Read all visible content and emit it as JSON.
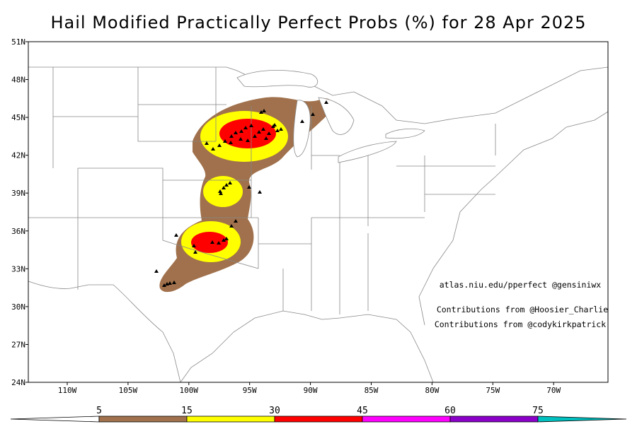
{
  "title": "Hail Modified Practically Perfect Probs (%) for 28 Apr 2025",
  "lat_labels": [
    "51N",
    "48N",
    "45N",
    "42N",
    "39N",
    "36N",
    "33N",
    "30N",
    "27N",
    "24N"
  ],
  "lon_labels": [
    "110W",
    "105W",
    "100W",
    "95W",
    "90W",
    "85W",
    "80W",
    "75W",
    "70W"
  ],
  "credits": [
    "atlas.niu.edu/pperfect @gensiniwx",
    "Contributions from @Hoosier_Charlie",
    "Contributions from @codykirkpatrick"
  ],
  "colorbar": {
    "levels": [
      5,
      15,
      30,
      45,
      60,
      75
    ],
    "colors": [
      "#ffffff",
      "#a0714c",
      "#ffff00",
      "#ff0000",
      "#ff00ff",
      "#8a00c8",
      "#00c0c0"
    ]
  }
}
